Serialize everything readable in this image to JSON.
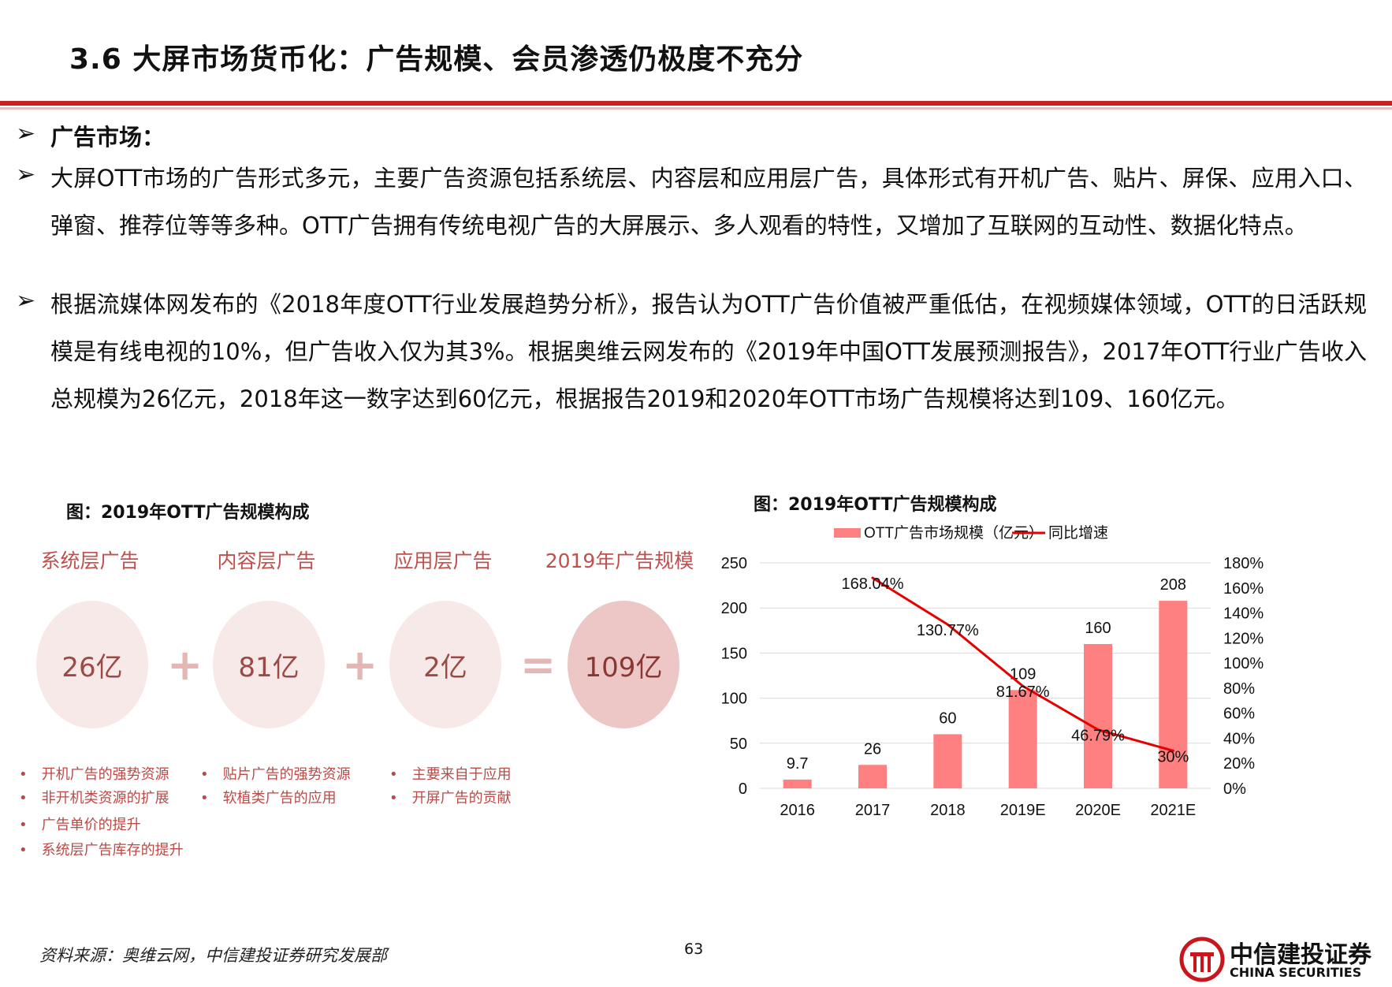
{
  "header": {
    "title": "3.6 大屏市场货币化：广告规模、会员渗透仍极度不充分"
  },
  "body": {
    "bullet_glyph": "➢",
    "p1": "广告市场：",
    "p2": "大屏OTT市场的广告形式多元，主要广告资源包括系统层、内容层和应用层广告，具体形式有开机广告、贴片、屏保、应用入口、弹窗、推荐位等等多种。OTT广告拥有传统电视广告的大屏展示、多人观看的特性，又增加了互联网的互动性、数据化特点。",
    "p3": "根据流媒体网发布的《2018年度OTT行业发展趋势分析》，报告认为OTT广告价值被严重低估，在视频媒体领域，OTT的日活跃规模是有线电视的10%，但广告收入仅为其3%。根据奥维云网发布的《2019年中国OTT发展预测报告》，2017年OTT行业广告收入总规模为26亿元，2018年这一数字达到60亿元，根据报告2019和2020年OTT市场广告规模将达到109、160亿元。"
  },
  "left_figure": {
    "caption": "图：2019年OTT广告规模构成",
    "labels": [
      "系统层广告",
      "内容层广告",
      "应用层广告",
      "2019年广告规模"
    ],
    "values": [
      "26亿",
      "81亿",
      "2亿",
      "109亿"
    ],
    "ops": [
      "+",
      "+",
      "="
    ],
    "bullet_dot": "•",
    "features": [
      [
        "开机广告的强势资源",
        "非开机类资源的扩展",
        "广告单价的提升",
        "系统层广告库存的提升"
      ],
      [
        "贴片广告的强势资源",
        "软植类广告的应用"
      ],
      [
        "主要来自于应用",
        "开屏广告的贡献"
      ]
    ]
  },
  "chart_data": {
    "type": "bar",
    "title": "图：2019年OTT广告规模构成",
    "categories": [
      "2016",
      "2017",
      "2018",
      "2019E",
      "2020E",
      "2021E"
    ],
    "series": [
      {
        "name": "OTT广告市场规模（亿元）",
        "type": "bar",
        "axis": "left",
        "values": [
          9.7,
          26,
          60,
          109,
          160,
          208
        ],
        "labels": [
          "9.7",
          "26",
          "60",
          "109",
          "160",
          "208"
        ]
      },
      {
        "name": "同比增速",
        "type": "line",
        "axis": "right",
        "values": [
          null,
          168.04,
          130.77,
          81.67,
          46.79,
          30
        ],
        "labels": [
          "",
          "168.04%",
          "130.77%",
          "81.67%",
          "46.79%",
          "30%"
        ]
      }
    ],
    "ylim": [
      0,
      250
    ],
    "yticks": [
      "0",
      "50",
      "100",
      "150",
      "200",
      "250"
    ],
    "y2lim": [
      0,
      180
    ],
    "y2ticks": [
      "0%",
      "20%",
      "40%",
      "60%",
      "80%",
      "100%",
      "120%",
      "140%",
      "160%",
      "180%"
    ],
    "grid": true,
    "legend": "top",
    "colors": {
      "bar": "#ff8080",
      "line": "#e60000"
    }
  },
  "footer": {
    "source": "资料来源：奥维云网，中信建投证券研究发展部",
    "page": "63",
    "logo_cn": "中信建投证券",
    "logo_en": "CHINA SECURITIES",
    "logo_color": "#c8161d"
  }
}
